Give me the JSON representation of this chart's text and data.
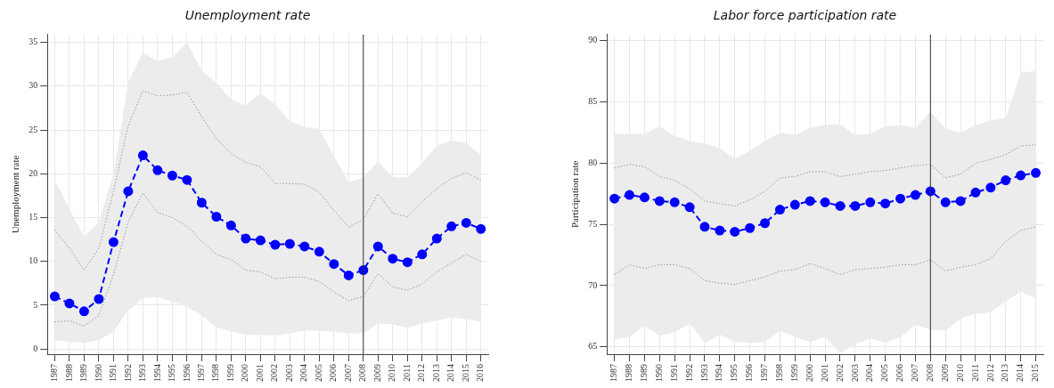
{
  "chart_data": [
    {
      "type": "line",
      "title": "Unemployment rate",
      "ylabel": "Unemployment rate",
      "categories": [
        "1987",
        "1988",
        "1989",
        "1990",
        "1991",
        "1992",
        "1993",
        "1994",
        "1995",
        "1996",
        "1997",
        "1998",
        "1999",
        "2000",
        "2001",
        "2002",
        "2003",
        "2004",
        "2005",
        "2006",
        "2007",
        "2008",
        "2009",
        "2010",
        "2011",
        "2012",
        "2013",
        "2014",
        "2015",
        "2016"
      ],
      "ylim": [
        -0.6,
        35.9
      ],
      "yticks": [
        0,
        5,
        10,
        15,
        20,
        25,
        30,
        35
      ],
      "grid": true,
      "legend": false,
      "ref_lines": [
        {
          "axis": "x",
          "value": "2008",
          "color": "#333333"
        }
      ],
      "series": [
        {
          "color": "#999999",
          "line_style": "dotted",
          "marker": "none",
          "values": [
            13.6,
            11.5,
            9.0,
            11.5,
            18,
            25.5,
            29.5,
            28.9,
            29.0,
            29.3,
            26.5,
            24.0,
            22.3,
            21.3,
            20.8,
            18.9,
            18.9,
            18.8,
            17.9,
            15.8,
            13.9,
            14.8,
            17.7,
            15.5,
            15.1,
            16.8,
            18.3,
            19.5,
            20.1,
            19.3
          ]
        },
        {
          "color": "#999999",
          "line_style": "dotted",
          "marker": "none",
          "values": [
            3.1,
            3.2,
            2.6,
            3.8,
            8.5,
            14.5,
            17.8,
            15.6,
            15.0,
            14.0,
            12.3,
            10.8,
            10.2,
            9.0,
            8.8,
            8.0,
            8.2,
            8.2,
            7.7,
            6.5,
            5.5,
            6.0,
            8.6,
            7.1,
            6.7,
            7.4,
            8.8,
            9.8,
            10.8,
            10.0
          ]
        },
        {
          "color": "#0000ff",
          "line_style": "dashed",
          "marker": "circle",
          "values": [
            6.0,
            5.2,
            4.3,
            5.7,
            12.2,
            18.0,
            22.1,
            20.4,
            19.8,
            19.3,
            16.7,
            15.1,
            14.1,
            12.6,
            12.4,
            11.9,
            12.0,
            11.7,
            11.1,
            9.7,
            8.4,
            9.0,
            11.7,
            10.3,
            9.9,
            10.8,
            12.6,
            14.0,
            14.4,
            13.7
          ],
          "lower": [
            1.0,
            0.8,
            0.7,
            1.0,
            2.0,
            4.4,
            5.8,
            5.9,
            5.4,
            4.8,
            3.8,
            2.5,
            2.0,
            1.6,
            1.6,
            1.5,
            1.8,
            2.1,
            2.1,
            2.0,
            1.8,
            1.8,
            2.9,
            2.8,
            2.4,
            2.9,
            3.2,
            3.6,
            3.4,
            3.1
          ],
          "upper": [
            19.3,
            16,
            12.8,
            14.5,
            20,
            30.5,
            33.8,
            32.9,
            33.3,
            35.0,
            31.8,
            30.4,
            28.5,
            27.8,
            29.2,
            27.9,
            26.0,
            25.4,
            25.1,
            22.0,
            19.0,
            19.6,
            21.4,
            19.6,
            19.6,
            21.2,
            23.2,
            23.8,
            23.5,
            22.1
          ]
        }
      ]
    },
    {
      "type": "line",
      "title": "Labor force participation rate",
      "ylabel": "Participation rate",
      "categories": [
        "1987",
        "1988",
        "1989",
        "1990",
        "1991",
        "1992",
        "1993",
        "1994",
        "1995",
        "1996",
        "1997",
        "1998",
        "1999",
        "2000",
        "2001",
        "2002",
        "2003",
        "2004",
        "2005",
        "2006",
        "2007",
        "2008",
        "2009",
        "2010",
        "2011",
        "2012",
        "2013",
        "2014",
        "2015"
      ],
      "ylim": [
        64.4,
        90.5
      ],
      "yticks": [
        65,
        70,
        75,
        80,
        85,
        90
      ],
      "grid": true,
      "legend": false,
      "ref_lines": [
        {
          "axis": "x",
          "value": "2008",
          "color": "#333333"
        }
      ],
      "series": [
        {
          "color": "#999999",
          "line_style": "dotted",
          "marker": "none",
          "values": [
            79.6,
            79.9,
            79.7,
            78.9,
            78.6,
            77.9,
            76.9,
            76.7,
            76.5,
            77.0,
            77.7,
            78.8,
            78.9,
            79.3,
            79.3,
            78.9,
            79.1,
            79.3,
            79.4,
            79.6,
            79.8,
            79.9,
            78.8,
            79.1,
            80.0,
            80.3,
            80.7,
            81.4,
            81.5
          ]
        },
        {
          "color": "#999999",
          "line_style": "dotted",
          "marker": "none",
          "values": [
            70.9,
            71.7,
            71.4,
            71.7,
            71.7,
            71.4,
            70.4,
            70.2,
            70.1,
            70.4,
            70.7,
            71.2,
            71.3,
            71.8,
            71.4,
            70.9,
            71.3,
            71.4,
            71.5,
            71.7,
            71.7,
            72.1,
            71.2,
            71.5,
            71.7,
            72.2,
            73.6,
            74.5,
            74.8
          ]
        },
        {
          "color": "#0000ff",
          "line_style": "dashed",
          "marker": "circle",
          "values": [
            77.1,
            77.4,
            77.2,
            76.9,
            76.8,
            76.4,
            74.8,
            74.5,
            74.4,
            74.7,
            75.1,
            76.2,
            76.6,
            76.9,
            76.8,
            76.5,
            76.5,
            76.8,
            76.7,
            77.1,
            77.4,
            77.7,
            76.8,
            76.9,
            77.6,
            78.0,
            78.6,
            79.0,
            79.2
          ],
          "lower": [
            65.6,
            65.8,
            66.7,
            65.9,
            66.2,
            66.9,
            65.3,
            66.0,
            65.4,
            65.3,
            65.4,
            66.3,
            65.8,
            65.4,
            65.8,
            64.5,
            65.2,
            65.7,
            65.3,
            65.8,
            66.8,
            66.4,
            66.3,
            67.3,
            67.7,
            67.8,
            68.7,
            69.5,
            69.0
          ],
          "upper": [
            82.4,
            82.4,
            82.4,
            83.0,
            82.2,
            81.8,
            81.6,
            81.2,
            80.4,
            81.0,
            81.8,
            82.5,
            82.3,
            82.9,
            83.1,
            83.2,
            82.3,
            82.4,
            83.0,
            83.1,
            82.9,
            84.2,
            82.8,
            82.5,
            83.1,
            83.5,
            83.7,
            87.4,
            87.5
          ]
        }
      ]
    }
  ]
}
